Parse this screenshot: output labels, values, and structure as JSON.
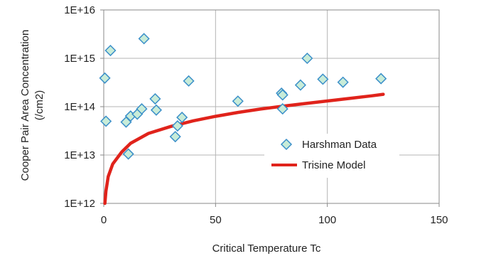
{
  "chart_data": {
    "type": "scatter",
    "xlabel": "Critical Temperature Tc",
    "ylabel": [
      "Cooper Pair Area Concentration",
      "(/cm2)"
    ],
    "xlim": [
      0,
      150
    ],
    "ylim": [
      1000000000000.0,
      1e+16
    ],
    "yscale": "log",
    "x_ticks": [
      0,
      50,
      100,
      150
    ],
    "x_tick_labels": [
      "0",
      "50",
      "100",
      "150"
    ],
    "y_ticks": [
      1000000000000.0,
      10000000000000.0,
      100000000000000.0,
      1000000000000000.0,
      1e+16
    ],
    "y_tick_labels": [
      "1E+12",
      "1E+13",
      "1E+14",
      "1E+15",
      "1E+16"
    ],
    "grid": true,
    "legend": {
      "placement": "center-right",
      "entries": [
        "Harshman Data",
        "Trisine Model"
      ]
    },
    "series": [
      {
        "name": "Harshman Data",
        "kind": "scatter",
        "marker": "diamond",
        "color": "#3a8fc9",
        "fill": "#c8ecd8",
        "points": [
          {
            "x": 0.5,
            "y": 390000000000000.0
          },
          {
            "x": 1,
            "y": 50000000000000.0
          },
          {
            "x": 3,
            "y": 1450000000000000.0
          },
          {
            "x": 10,
            "y": 48000000000000.0
          },
          {
            "x": 11,
            "y": 10500000000000.0
          },
          {
            "x": 12,
            "y": 64000000000000.0
          },
          {
            "x": 15,
            "y": 70000000000000.0
          },
          {
            "x": 17,
            "y": 90000000000000.0
          },
          {
            "x": 18,
            "y": 2550000000000000.0
          },
          {
            "x": 23,
            "y": 145000000000000.0
          },
          {
            "x": 23.5,
            "y": 85000000000000.0
          },
          {
            "x": 32,
            "y": 24000000000000.0
          },
          {
            "x": 33,
            "y": 40000000000000.0
          },
          {
            "x": 35,
            "y": 60000000000000.0
          },
          {
            "x": 38,
            "y": 340000000000000.0
          },
          {
            "x": 60,
            "y": 130000000000000.0
          },
          {
            "x": 79.5,
            "y": 190000000000000.0
          },
          {
            "x": 80,
            "y": 175000000000000.0
          },
          {
            "x": 80,
            "y": 90000000000000.0
          },
          {
            "x": 88,
            "y": 280000000000000.0
          },
          {
            "x": 91,
            "y": 1000000000000000.0
          },
          {
            "x": 98,
            "y": 370000000000000.0
          },
          {
            "x": 107,
            "y": 320000000000000.0
          },
          {
            "x": 124,
            "y": 380000000000000.0
          }
        ]
      },
      {
        "name": "Trisine Model",
        "kind": "line",
        "color": "#e0231b",
        "points": [
          {
            "x": 0.5,
            "y": 1000000000000.0
          },
          {
            "x": 1,
            "y": 1800000000000.0
          },
          {
            "x": 2,
            "y": 3600000000000.0
          },
          {
            "x": 4,
            "y": 6500000000000.0
          },
          {
            "x": 8,
            "y": 11500000000000.0
          },
          {
            "x": 12,
            "y": 17500000000000.0
          },
          {
            "x": 20,
            "y": 28000000000000.0
          },
          {
            "x": 30,
            "y": 39000000000000.0
          },
          {
            "x": 40,
            "y": 51000000000000.0
          },
          {
            "x": 50,
            "y": 63000000000000.0
          },
          {
            "x": 60,
            "y": 76000000000000.0
          },
          {
            "x": 70,
            "y": 89000000000000.0
          },
          {
            "x": 80,
            "y": 102000000000000.0
          },
          {
            "x": 90,
            "y": 116000000000000.0
          },
          {
            "x": 100,
            "y": 131000000000000.0
          },
          {
            "x": 110,
            "y": 148000000000000.0
          },
          {
            "x": 120,
            "y": 168000000000000.0
          },
          {
            "x": 125,
            "y": 180000000000000.0
          }
        ]
      }
    ]
  }
}
